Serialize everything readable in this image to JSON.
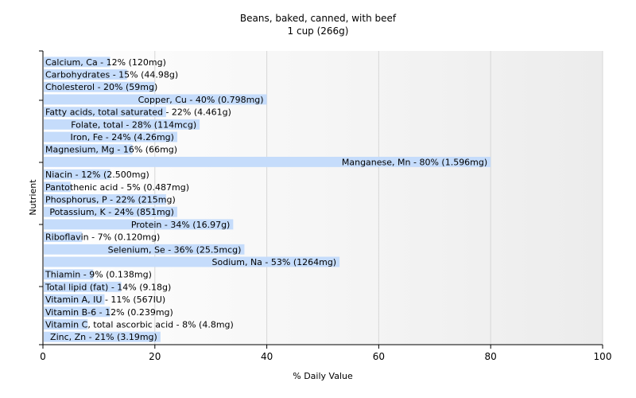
{
  "chart_data": {
    "type": "bar",
    "orientation": "horizontal",
    "title": "Beans, baked, canned, with beef",
    "subtitle": "1 cup (266g)",
    "xlabel": "% Daily Value",
    "ylabel": "Nutrient",
    "xlim": [
      0,
      100
    ],
    "xticks": [
      "0",
      "20",
      "40",
      "60",
      "80",
      "100"
    ],
    "grid": true,
    "bar_color": "#c5dcfb",
    "categories": [
      "Calcium, Ca",
      "Carbohydrates",
      "Cholesterol",
      "Copper, Cu",
      "Fatty acids, total saturated",
      "Folate, total",
      "Iron, Fe",
      "Magnesium, Mg",
      "Manganese, Mn",
      "Niacin",
      "Pantothenic acid",
      "Phosphorus, P",
      "Potassium, K",
      "Protein",
      "Riboflavin",
      "Selenium, Se",
      "Sodium, Na",
      "Thiamin",
      "Total lipid (fat)",
      "Vitamin A, IU",
      "Vitamin B-6",
      "Vitamin C, total ascorbic acid",
      "Zinc, Zn"
    ],
    "values": [
      12,
      15,
      20,
      40,
      22,
      28,
      24,
      16,
      80,
      12,
      5,
      22,
      24,
      34,
      7,
      36,
      53,
      9,
      14,
      11,
      12,
      8,
      21
    ],
    "labels": [
      "Calcium, Ca - 12% (120mg)",
      "Carbohydrates - 15% (44.98g)",
      "Cholesterol - 20% (59mg)",
      "Copper, Cu - 40% (0.798mg)",
      "Fatty acids, total saturated - 22% (4.461g)",
      "Folate, total - 28% (114mcg)",
      "Iron, Fe - 24% (4.26mg)",
      "Magnesium, Mg - 16% (66mg)",
      "Manganese, Mn - 80% (1.596mg)",
      "Niacin - 12% (2.500mg)",
      "Pantothenic acid - 5% (0.487mg)",
      "Phosphorus, P - 22% (215mg)",
      "Potassium, K - 24% (851mg)",
      "Protein - 34% (16.97g)",
      "Riboflavin - 7% (0.120mg)",
      "Selenium, Se - 36% (25.5mcg)",
      "Sodium, Na - 53% (1264mg)",
      "Thiamin - 9% (0.138mg)",
      "Total lipid (fat) - 14% (9.18g)",
      "Vitamin A, IU - 11% (567IU)",
      "Vitamin B-6 - 12% (0.239mg)",
      "Vitamin C, total ascorbic acid - 8% (4.8mg)",
      "Zinc, Zn - 21% (3.19mg)"
    ]
  }
}
